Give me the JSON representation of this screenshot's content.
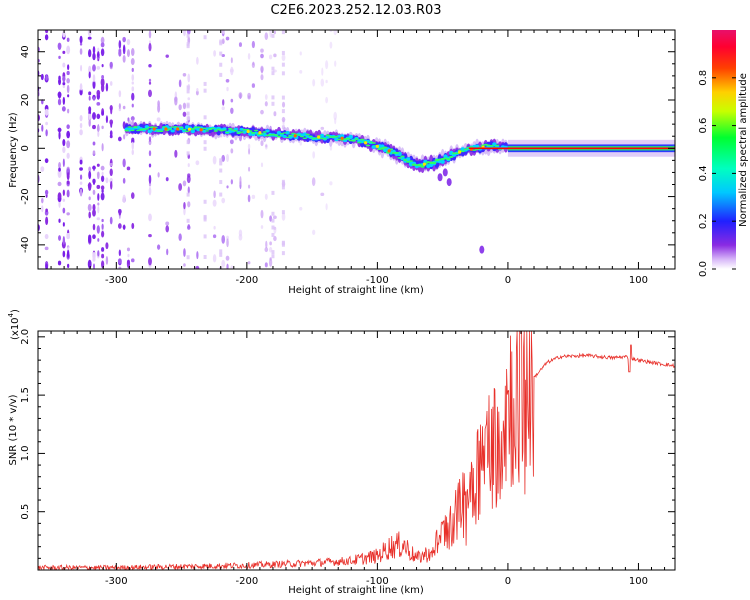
{
  "title": "C2E6.2023.252.12.03.R03",
  "colors": {
    "snr_line": "#e8302a",
    "spectrogram_noise": "#8a2be2",
    "zero_line": "#ff0000"
  },
  "chart_data": [
    {
      "type": "heatmap",
      "panel": "top",
      "title": "C2E6.2023.252.12.03.R03",
      "xlabel": "Height of straight line (km)",
      "ylabel": "Frequency (Hz)",
      "xlim": [
        -360,
        128
      ],
      "ylim": [
        -50,
        49
      ],
      "xticks": [
        -300,
        -200,
        -100,
        0,
        100
      ],
      "yticks": [
        -40,
        -20,
        0,
        20,
        40
      ],
      "colorbar": {
        "label": "Normalized spectral amplitude",
        "range": [
          0,
          1
        ],
        "ticks": [
          0.0,
          0.2,
          0.4,
          0.6,
          0.8
        ],
        "tick_labels": [
          "0.0",
          "0.2",
          "0.4",
          "0.6",
          "0.8"
        ],
        "colormap": "rainbow (white-purple-blue-cyan-green-yellow-red-magenta)"
      },
      "ridge": {
        "description": "main spectral trace (center frequency vs height)",
        "x": [
          -290,
          -250,
          -200,
          -160,
          -120,
          -95,
          -80,
          -70,
          -55,
          -40,
          -25,
          -10,
          0,
          128
        ],
        "y": [
          8,
          8,
          7,
          5,
          4,
          0,
          -4,
          -7,
          -6,
          -2,
          0,
          1,
          0,
          0
        ]
      },
      "noise_region": [
        -360,
        -160
      ]
    },
    {
      "type": "line",
      "panel": "bottom",
      "xlabel": "Height of straight line (km)",
      "ylabel": "SNR (10 * v/v)",
      "scale_label": "(x10",
      "scale_exponent": "4",
      "xlim": [
        -360,
        128
      ],
      "ylim": [
        0,
        2.05
      ],
      "xticks": [
        -300,
        -200,
        -100,
        0,
        100
      ],
      "yticks": [
        0.5,
        1.0,
        1.5,
        2.0
      ],
      "ytick_labels": [
        "0.5",
        "1.0",
        "1.5",
        "2.0"
      ],
      "series": [
        {
          "name": "SNR",
          "x": [
            -360,
            -300,
            -250,
            -200,
            -150,
            -120,
            -100,
            -90,
            -80,
            -70,
            -60,
            -50,
            -40,
            -30,
            -20,
            -10,
            0,
            10,
            20,
            30,
            40,
            60,
            80,
            90,
            100,
            110,
            128
          ],
          "y": [
            0.02,
            0.02,
            0.03,
            0.04,
            0.06,
            0.08,
            0.12,
            0.2,
            0.22,
            0.1,
            0.15,
            0.3,
            0.45,
            0.7,
            0.95,
            1.1,
            1.45,
            1.55,
            1.65,
            1.78,
            1.83,
            1.84,
            1.82,
            1.83,
            1.8,
            1.78,
            1.75
          ]
        }
      ]
    }
  ]
}
